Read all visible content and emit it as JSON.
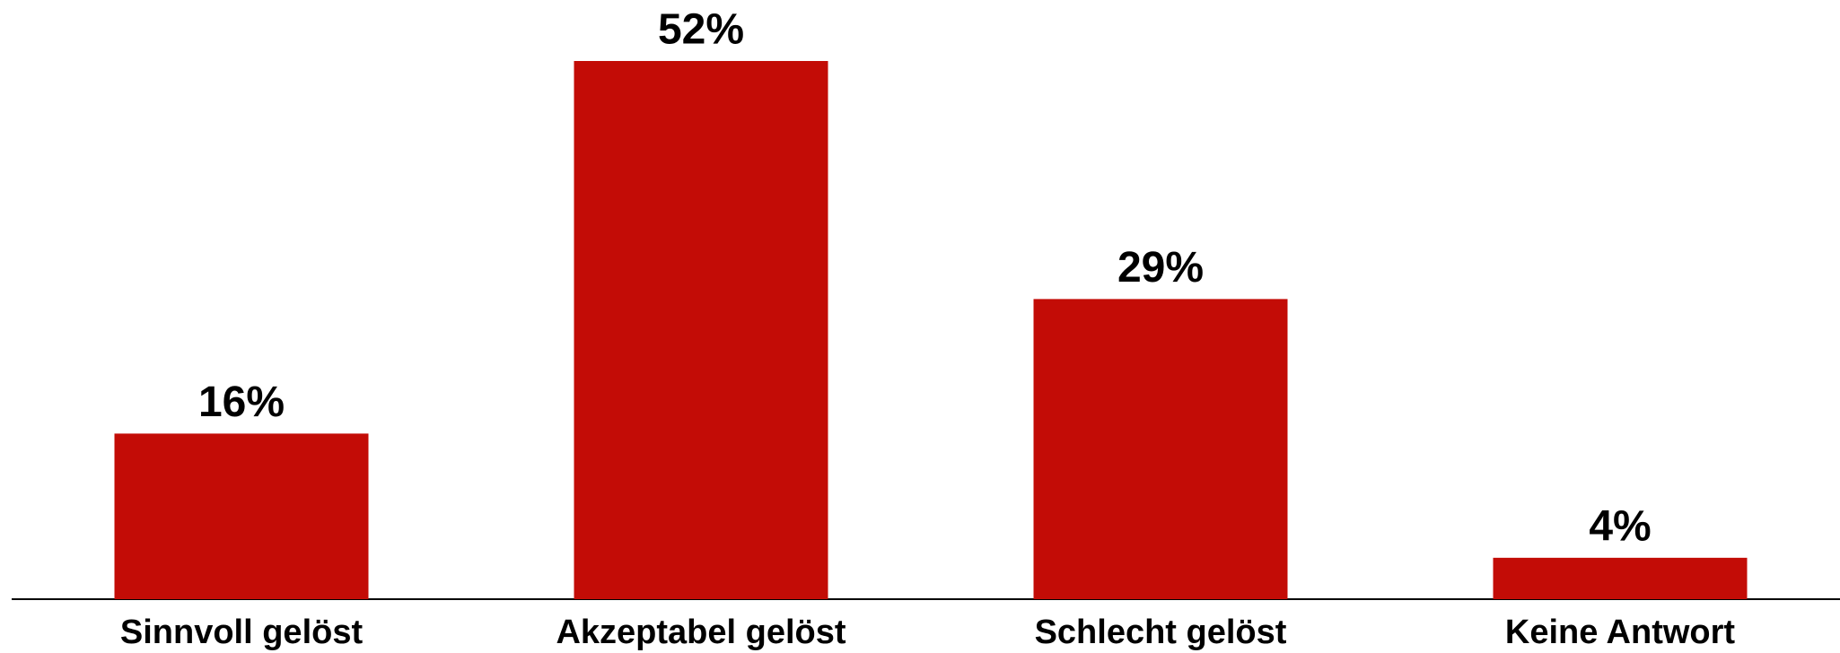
{
  "chart_data": {
    "type": "bar",
    "categories": [
      "Sinnvoll gelöst",
      "Akzeptabel gelöst",
      "Schlecht gelöst",
      "Keine Antwort"
    ],
    "values": [
      16,
      52,
      29,
      4
    ],
    "value_labels": [
      "16%",
      "52%",
      "29%",
      "4%"
    ],
    "color": "#c30c06"
  }
}
